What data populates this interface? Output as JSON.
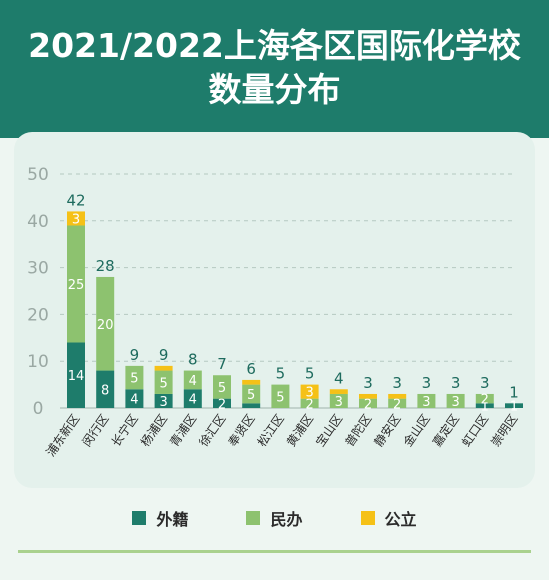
{
  "header": {
    "title_line1": "2021/2022上海各区国际化学校",
    "title_line2": "数量分布"
  },
  "colors": {
    "header_bg": "#1e7c6b",
    "foreign": "#1e7c6b",
    "private": "#8dc26f",
    "public": "#f5c117"
  },
  "legend": [
    {
      "label": "外籍",
      "color": "#1e7c6b"
    },
    {
      "label": "民办",
      "color": "#8dc26f"
    },
    {
      "label": "公立",
      "color": "#f5c117"
    }
  ],
  "chart_data": {
    "type": "bar",
    "stacked": true,
    "categories": [
      "浦东新区",
      "闵行区",
      "长宁区",
      "杨浦区",
      "青浦区",
      "徐汇区",
      "奉贤区",
      "松江区",
      "黄浦区",
      "宝山区",
      "普陀区",
      "静安区",
      "金山区",
      "嘉定区",
      "虹口区",
      "崇明区"
    ],
    "series": [
      {
        "name": "外籍",
        "values": [
          14,
          8,
          4,
          3,
          4,
          2,
          1,
          0,
          0,
          0,
          0,
          0,
          0,
          0,
          1,
          1
        ]
      },
      {
        "name": "民办",
        "values": [
          25,
          20,
          5,
          5,
          4,
          5,
          4,
          5,
          2,
          3,
          2,
          2,
          3,
          3,
          2,
          0
        ]
      },
      {
        "name": "公立",
        "values": [
          3,
          0,
          0,
          1,
          0,
          0,
          1,
          0,
          3,
          1,
          1,
          1,
          0,
          0,
          0,
          0
        ]
      }
    ],
    "segment_labels": [
      [
        "14",
        "25",
        "3"
      ],
      [
        "8",
        "20",
        ""
      ],
      [
        "4",
        "5",
        ""
      ],
      [
        "3",
        "5",
        ""
      ],
      [
        "4",
        "4",
        ""
      ],
      [
        "2",
        "5",
        ""
      ],
      [
        "",
        "5",
        ""
      ],
      [
        "",
        "5",
        ""
      ],
      [
        "",
        "2",
        "3"
      ],
      [
        "",
        "3",
        ""
      ],
      [
        "",
        "2",
        ""
      ],
      [
        "",
        "2",
        ""
      ],
      [
        "",
        "3",
        ""
      ],
      [
        "",
        "3",
        ""
      ],
      [
        "1",
        "2",
        ""
      ],
      [
        "1",
        "",
        ""
      ]
    ],
    "totals": [
      42,
      28,
      9,
      9,
      8,
      7,
      6,
      5,
      5,
      4,
      3,
      3,
      3,
      3,
      3,
      1
    ],
    "yticks": [
      0,
      10,
      20,
      30,
      40,
      50
    ],
    "ylim": [
      0,
      50
    ],
    "grid": true
  }
}
